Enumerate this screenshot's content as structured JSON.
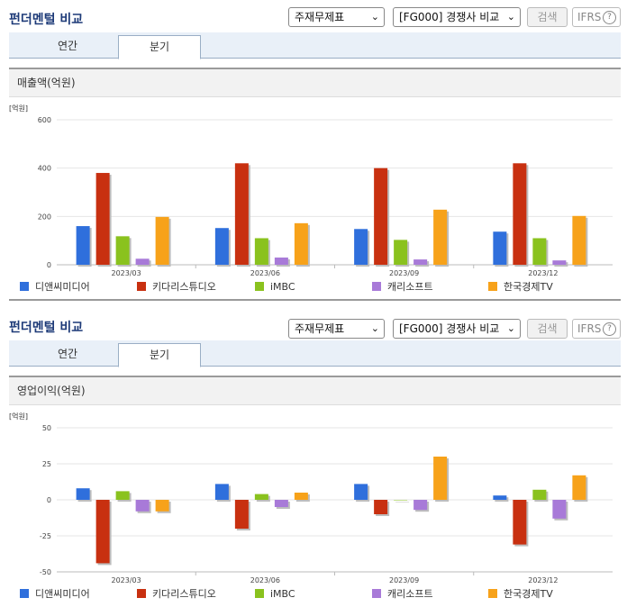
{
  "panels": [
    {
      "title": "펀더멘털 비교",
      "select_statement": "주재무제표",
      "select_peer": "[FG000] 경쟁사 비교",
      "search_label": "검색",
      "ifrs_label": "IFRS",
      "ifrs_help": "?",
      "tabs": [
        "연간",
        "분기"
      ],
      "active_tab": "분기",
      "chart_title": "매출액(억원)",
      "unit_label": "[억원]"
    },
    {
      "title": "펀더멘털 비교",
      "select_statement": "주재무제표",
      "select_peer": "[FG000] 경쟁사 비교",
      "search_label": "검색",
      "ifrs_label": "IFRS",
      "ifrs_help": "?",
      "tabs": [
        "연간",
        "분기"
      ],
      "active_tab": "분기",
      "chart_title": "영업이익(억원)",
      "unit_label": "[억원]"
    }
  ],
  "chart_data": [
    {
      "type": "bar",
      "title": "매출액(억원)",
      "ylabel": "[억원]",
      "categories": [
        "2023/03",
        "2023/06",
        "2023/09",
        "2023/12"
      ],
      "ylim": [
        0,
        600
      ],
      "yticks": [
        0,
        200,
        400,
        600
      ],
      "series": [
        {
          "name": "디앤씨미디어",
          "color": "#2f6fdc",
          "values": [
            160,
            152,
            148,
            137
          ]
        },
        {
          "name": "키다리스튜디오",
          "color": "#c83010",
          "values": [
            380,
            420,
            400,
            420
          ]
        },
        {
          "name": "iMBC",
          "color": "#8ac21e",
          "values": [
            118,
            110,
            103,
            110
          ]
        },
        {
          "name": "캐리소프트",
          "color": "#a87ad8",
          "values": [
            25,
            30,
            22,
            18
          ]
        },
        {
          "name": "한국경제TV",
          "color": "#f7a21a",
          "values": [
            198,
            172,
            228,
            202
          ]
        }
      ],
      "legend_position": "bottom"
    },
    {
      "type": "bar",
      "title": "영업이익(억원)",
      "ylabel": "[억원]",
      "categories": [
        "2023/03",
        "2023/06",
        "2023/09",
        "2023/12"
      ],
      "ylim": [
        -50,
        50
      ],
      "yticks": [
        -50,
        -25,
        0,
        25,
        50
      ],
      "series": [
        {
          "name": "디앤씨미디어",
          "color": "#2f6fdc",
          "values": [
            8,
            11,
            11,
            3
          ]
        },
        {
          "name": "키다리스튜디오",
          "color": "#c83010",
          "values": [
            -44,
            -20,
            -10,
            -31
          ]
        },
        {
          "name": "iMBC",
          "color": "#8ac21e",
          "values": [
            6,
            4,
            0,
            7
          ]
        },
        {
          "name": "캐리소프트",
          "color": "#a87ad8",
          "values": [
            -8,
            -5,
            -7,
            -13
          ]
        },
        {
          "name": "한국경제TV",
          "color": "#f7a21a",
          "values": [
            -8,
            5,
            30,
            17
          ]
        }
      ],
      "legend_position": "bottom"
    }
  ]
}
